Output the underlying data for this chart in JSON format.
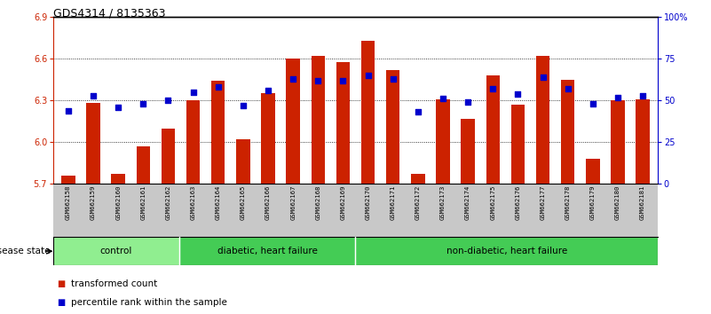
{
  "title": "GDS4314 / 8135363",
  "samples": [
    "GSM662158",
    "GSM662159",
    "GSM662160",
    "GSM662161",
    "GSM662162",
    "GSM662163",
    "GSM662164",
    "GSM662165",
    "GSM662166",
    "GSM662167",
    "GSM662168",
    "GSM662169",
    "GSM662170",
    "GSM662171",
    "GSM662172",
    "GSM662173",
    "GSM662174",
    "GSM662175",
    "GSM662176",
    "GSM662177",
    "GSM662178",
    "GSM662179",
    "GSM662180",
    "GSM662181"
  ],
  "bar_values": [
    5.76,
    6.28,
    5.77,
    5.97,
    6.1,
    6.3,
    6.44,
    6.02,
    6.35,
    6.6,
    6.62,
    6.58,
    6.73,
    6.52,
    5.77,
    6.31,
    6.17,
    6.48,
    6.27,
    6.62,
    6.45,
    5.88,
    6.3,
    6.31
  ],
  "percentile_values": [
    44,
    53,
    46,
    48,
    50,
    55,
    58,
    47,
    56,
    63,
    62,
    62,
    65,
    63,
    43,
    51,
    49,
    57,
    54,
    64,
    57,
    48,
    52,
    53
  ],
  "ylim_left": [
    5.7,
    6.9
  ],
  "ylim_right": [
    0,
    100
  ],
  "yticks_left": [
    5.7,
    6.0,
    6.3,
    6.6,
    6.9
  ],
  "yticks_right": [
    0,
    25,
    50,
    75,
    100
  ],
  "ytick_labels_right": [
    "0",
    "25",
    "50",
    "75",
    "100%"
  ],
  "bar_color": "#CC2200",
  "marker_color": "#0000CC",
  "group_boundaries": [
    [
      0,
      5,
      "control"
    ],
    [
      5,
      12,
      "diabetic, heart failure"
    ],
    [
      12,
      24,
      "non-diabetic, heart failure"
    ]
  ],
  "group_color_light": "#90EE90",
  "group_color_dark": "#44CC55",
  "legend_bar_label": "transformed count",
  "legend_marker_label": "percentile rank within the sample",
  "disease_state_label": "disease state"
}
